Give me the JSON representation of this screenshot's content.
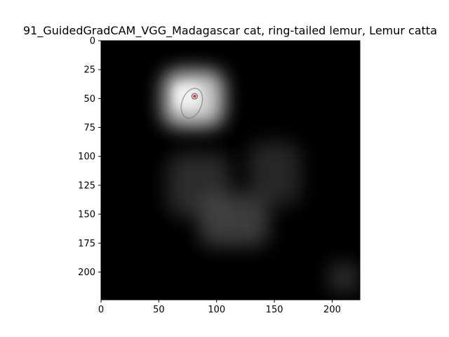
{
  "chart_data": {
    "type": "heatmap",
    "title": "91_GuidedGradCAM_VGG_Madagascar cat, ring-tailed lemur, Lemur catta",
    "xlabel": "",
    "ylabel": "",
    "xlim": [
      0,
      224
    ],
    "ylim": [
      224,
      0
    ],
    "xticks": [
      0,
      50,
      100,
      150,
      200
    ],
    "yticks": [
      0,
      25,
      50,
      75,
      100,
      125,
      150,
      175,
      200
    ],
    "grid": false,
    "colors": {
      "background": "#000000",
      "highlight": "#e8e8e8",
      "accent": "#d23a3a"
    },
    "hotspots": [
      {
        "x": 80,
        "y": 50,
        "w": 52,
        "h": 48,
        "intensity": 0.9,
        "label": ""
      },
      {
        "x": 75,
        "y": 48,
        "w": 22,
        "h": 20,
        "intensity": 1.0,
        "label": ""
      },
      {
        "x": 115,
        "y": 155,
        "w": 60,
        "h": 45,
        "intensity": 0.28,
        "label": ""
      },
      {
        "x": 85,
        "y": 125,
        "w": 55,
        "h": 55,
        "intensity": 0.18,
        "label": ""
      },
      {
        "x": 150,
        "y": 115,
        "w": 45,
        "h": 55,
        "intensity": 0.14,
        "label": ""
      },
      {
        "x": 210,
        "y": 205,
        "w": 25,
        "h": 25,
        "intensity": 0.2,
        "label": ""
      }
    ],
    "focus_point": {
      "x": 81,
      "y": 48
    }
  }
}
